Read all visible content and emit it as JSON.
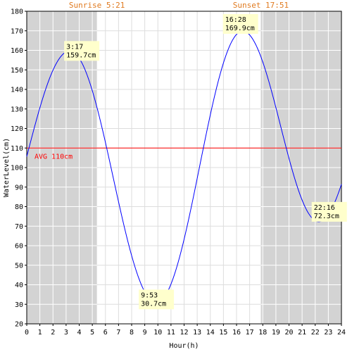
{
  "colors": {
    "night": "#d3d3d3",
    "grid": "#ffffff",
    "day_grid": "#dddddd",
    "curve": "#0000ff",
    "avg": "#ff0000",
    "sun_label": "#e07a1f",
    "label_bg": "#ffffcc"
  },
  "chart_data": {
    "type": "line",
    "xlabel": "Hour(h)",
    "ylabel": "WaterLevel(cm)",
    "xlim": [
      0,
      24
    ],
    "ylim": [
      20,
      180
    ],
    "x_ticks": [
      "0",
      "1",
      "2",
      "3",
      "4",
      "5",
      "6",
      "7",
      "8",
      "9",
      "10",
      "11",
      "12",
      "13",
      "14",
      "15",
      "16",
      "17",
      "18",
      "19",
      "20",
      "21",
      "22",
      "23",
      "24"
    ],
    "y_ticks": [
      "20",
      "30",
      "40",
      "50",
      "60",
      "70",
      "80",
      "90",
      "100",
      "110",
      "120",
      "130",
      "140",
      "150",
      "160",
      "170",
      "180"
    ],
    "grid": true,
    "sunrise": {
      "label": "Sunrise 5:21",
      "hour": 5.35
    },
    "sunset": {
      "label": "Sunset 17:51",
      "hour": 17.85
    },
    "average": {
      "label": "AVG 110cm",
      "value": 110
    },
    "extremes": [
      {
        "time": "3:17",
        "level": "159.7cm",
        "hour": 3.283,
        "value": 159.7
      },
      {
        "time": "9:53",
        "level": "30.7cm",
        "hour": 9.883,
        "value": 30.7
      },
      {
        "time": "16:28",
        "level": "169.9cm",
        "hour": 16.467,
        "value": 169.9
      },
      {
        "time": "22:16",
        "level": "72.3cm",
        "hour": 22.267,
        "value": 72.3
      }
    ],
    "series": [
      {
        "x": [
          0,
          24
        ],
        "y": [
          112,
          92
        ]
      }
    ]
  }
}
